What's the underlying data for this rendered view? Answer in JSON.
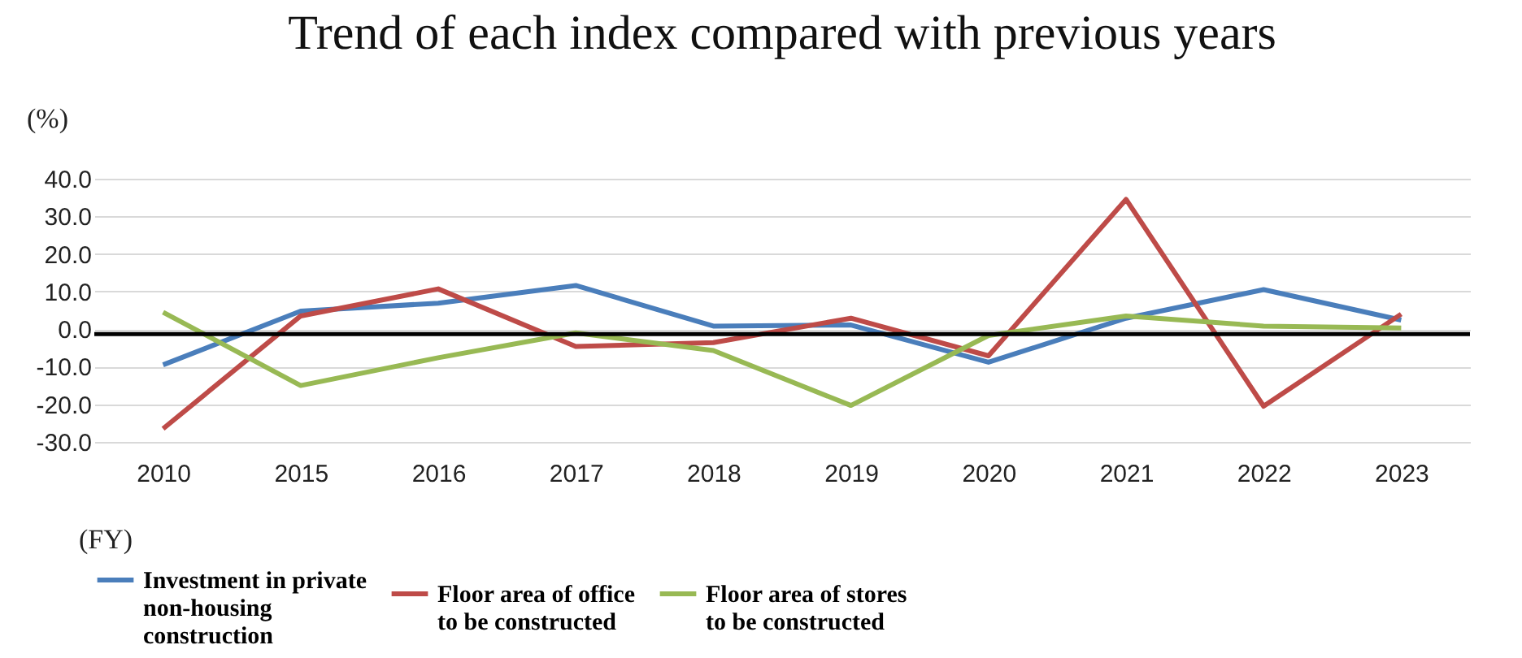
{
  "chart_data": {
    "type": "line",
    "title": "Trend of each index compared with previous years",
    "ylabel": "(%)",
    "xlabel": "(FY)",
    "categories": [
      "2010",
      "2015",
      "2016",
      "2017",
      "2018",
      "2019",
      "2020",
      "2021",
      "2022",
      "2023"
    ],
    "series": [
      {
        "name": "Investment in private non-housing construction",
        "color": "#4a7ebb",
        "values": [
          -9.5,
          4.8,
          6.9,
          11.6,
          0.8,
          1.1,
          -8.8,
          2.9,
          10.5,
          2.4
        ]
      },
      {
        "name": "Floor area of office to be constructed",
        "color": "#be4b48",
        "values": [
          -26.5,
          3.5,
          10.7,
          -4.6,
          -3.6,
          2.9,
          -7.1,
          34.5,
          -20.5,
          4.0
        ]
      },
      {
        "name": "Floor area of stores to be constructed",
        "color": "#98b954",
        "values": [
          4.5,
          -15.0,
          -7.6,
          -1.0,
          -5.7,
          -20.3,
          -1.7,
          3.5,
          0.8,
          0.3
        ]
      }
    ],
    "ylim": [
      -30,
      40
    ],
    "yticks": [
      {
        "value": -30,
        "label": "-30.0"
      },
      {
        "value": -20,
        "label": "-20.0"
      },
      {
        "value": -10,
        "label": "-10.0"
      },
      {
        "value": 0,
        "label": "0.0"
      },
      {
        "value": 10,
        "label": "10.0"
      },
      {
        "value": 20,
        "label": "20.0"
      },
      {
        "value": 30,
        "label": "30.0"
      },
      {
        "value": 40,
        "label": "40.0"
      }
    ],
    "ref_lines": [
      {
        "axis": "y",
        "value": -1.3,
        "color": "#000000"
      }
    ],
    "grid": "y",
    "legend": "bottom",
    "marker": "none",
    "line_style": "solid"
  }
}
